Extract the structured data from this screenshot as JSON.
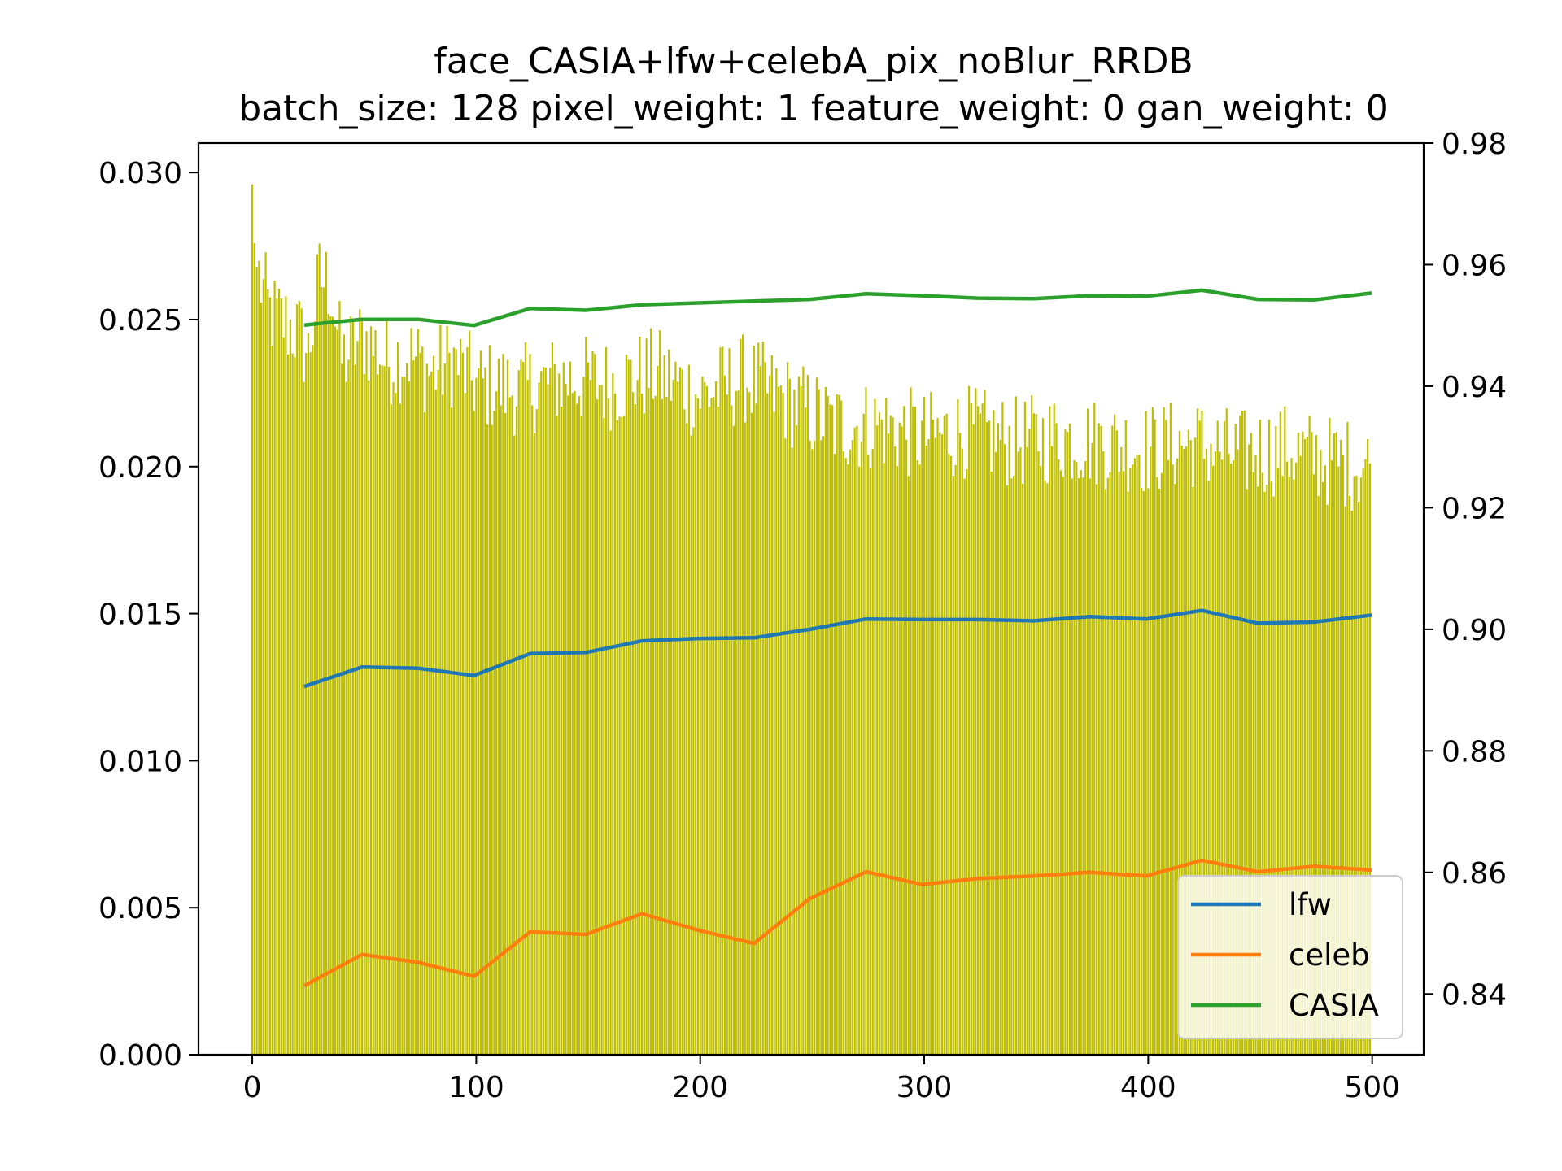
{
  "chart_data": {
    "type": "bar",
    "title": "face_CASIA+lfw+celebA_pix_noBlur_RRDB",
    "subtitle": "batch_size: 128 pixel_weight: 1 feature_weight: 0 gan_weight: 0",
    "xlabel": "",
    "ylabel_left": "",
    "ylabel_right": "",
    "xlim": [
      -24,
      523
    ],
    "ylim_left": [
      0,
      0.031
    ],
    "ylim_right": [
      0.83,
      0.98
    ],
    "grid": false,
    "legend_position": "lower-right",
    "x_ticks": [
      "0",
      "100",
      "200",
      "300",
      "400",
      "500"
    ],
    "y_left_ticks": [
      "0.000",
      "0.005",
      "0.010",
      "0.015",
      "0.020",
      "0.025",
      "0.030"
    ],
    "y_right_ticks": [
      "0.84",
      "0.86",
      "0.88",
      "0.90",
      "0.92",
      "0.94",
      "0.96",
      "0.98"
    ],
    "bars": {
      "name": "",
      "axis": "left",
      "color": "#bfbf00",
      "x_start": 0,
      "x_end": 499,
      "anchors": [
        [
          0,
          0.0296
        ],
        [
          1,
          0.0276
        ],
        [
          2,
          0.0268
        ],
        [
          4,
          0.0262
        ],
        [
          8,
          0.0252
        ],
        [
          12,
          0.025
        ],
        [
          20,
          0.0246
        ],
        [
          25,
          0.0238
        ],
        [
          30,
          0.0264
        ],
        [
          35,
          0.0262
        ],
        [
          40,
          0.0236
        ],
        [
          50,
          0.0244
        ],
        [
          60,
          0.0236
        ],
        [
          70,
          0.0238
        ],
        [
          80,
          0.0232
        ],
        [
          90,
          0.0236
        ],
        [
          100,
          0.0228
        ],
        [
          120,
          0.0226
        ],
        [
          140,
          0.023
        ],
        [
          160,
          0.0228
        ],
        [
          180,
          0.0232
        ],
        [
          200,
          0.0224
        ],
        [
          220,
          0.023
        ],
        [
          240,
          0.0222
        ],
        [
          260,
          0.0214
        ],
        [
          280,
          0.0214
        ],
        [
          300,
          0.021
        ],
        [
          320,
          0.0212
        ],
        [
          340,
          0.0208
        ],
        [
          360,
          0.021
        ],
        [
          380,
          0.0208
        ],
        [
          400,
          0.0206
        ],
        [
          420,
          0.0208
        ],
        [
          440,
          0.0204
        ],
        [
          460,
          0.0206
        ],
        [
          480,
          0.0202
        ],
        [
          499,
          0.02
        ]
      ],
      "noise": 0.0016
    },
    "series": [
      {
        "name": "lfw",
        "axis": "right",
        "color": "#1f77b4",
        "x": [
          24,
          49,
          74,
          99,
          124,
          149,
          174,
          199,
          224,
          249,
          274,
          299,
          324,
          349,
          374,
          399,
          424,
          449,
          474,
          499
        ],
        "values": [
          0.8907,
          0.8938,
          0.8936,
          0.8924,
          0.896,
          0.8962,
          0.8981,
          0.8985,
          0.8986,
          0.9,
          0.9017,
          0.9016,
          0.9016,
          0.9014,
          0.9021,
          0.9017,
          0.9031,
          0.901,
          0.9012,
          0.9023
        ]
      },
      {
        "name": "celeb",
        "axis": "right",
        "color": "#ff7f0e",
        "x": [
          24,
          49,
          74,
          99,
          124,
          149,
          174,
          199,
          224,
          249,
          274,
          299,
          324,
          349,
          374,
          399,
          424,
          449,
          474,
          499
        ],
        "values": [
          0.8415,
          0.8465,
          0.8452,
          0.8429,
          0.8502,
          0.8498,
          0.8532,
          0.8505,
          0.8483,
          0.8557,
          0.8601,
          0.858,
          0.859,
          0.8594,
          0.86,
          0.8594,
          0.862,
          0.8601,
          0.861,
          0.8604
        ]
      },
      {
        "name": "CASIA",
        "axis": "right",
        "color": "#2ca02c",
        "x": [
          24,
          49,
          74,
          99,
          124,
          149,
          174,
          199,
          224,
          249,
          274,
          299,
          324,
          349,
          374,
          399,
          424,
          449,
          474,
          499
        ],
        "values": [
          0.9501,
          0.951,
          0.951,
          0.95,
          0.9528,
          0.9525,
          0.9534,
          0.9537,
          0.954,
          0.9543,
          0.9552,
          0.9549,
          0.9545,
          0.9544,
          0.9549,
          0.9548,
          0.9558,
          0.9543,
          0.9542,
          0.9553
        ]
      }
    ]
  }
}
